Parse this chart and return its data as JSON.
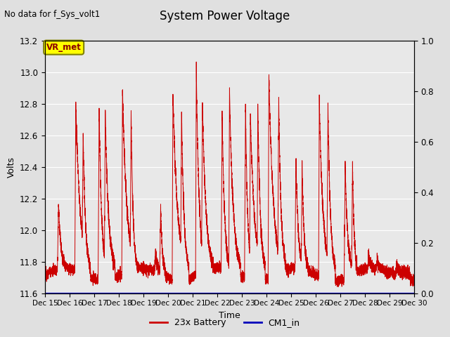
{
  "title": "System Power Voltage",
  "subtitle": "No data for f_Sys_volt1",
  "xlabel": "Time",
  "ylabel_left": "Volts",
  "ylim_left": [
    11.6,
    13.2
  ],
  "ylim_right": [
    0.0,
    1.0
  ],
  "yticks_left": [
    11.6,
    11.8,
    12.0,
    12.2,
    12.4,
    12.6,
    12.8,
    13.0,
    13.2
  ],
  "yticks_right": [
    0.0,
    0.2,
    0.4,
    0.6,
    0.8,
    1.0
  ],
  "xtick_labels": [
    "Dec 15",
    "Dec 16",
    "Dec 17",
    "Dec 18",
    "Dec 19",
    "Dec 20",
    "Dec 21",
    "Dec 22",
    "Dec 23",
    "Dec 24",
    "Dec 25",
    "Dec 26",
    "Dec 27",
    "Dec 28",
    "Dec 29",
    "Dec 30"
  ],
  "background_color": "#e0e0e0",
  "plot_bg_color": "#e8e8e8",
  "line_color_battery": "#cc0000",
  "line_color_cm1": "#0000bb",
  "legend_battery": "23x Battery",
  "legend_cm1": "CM1_in",
  "annotation_text": "VR_met",
  "title_fontsize": 12,
  "label_fontsize": 9,
  "tick_fontsize": 8.5
}
